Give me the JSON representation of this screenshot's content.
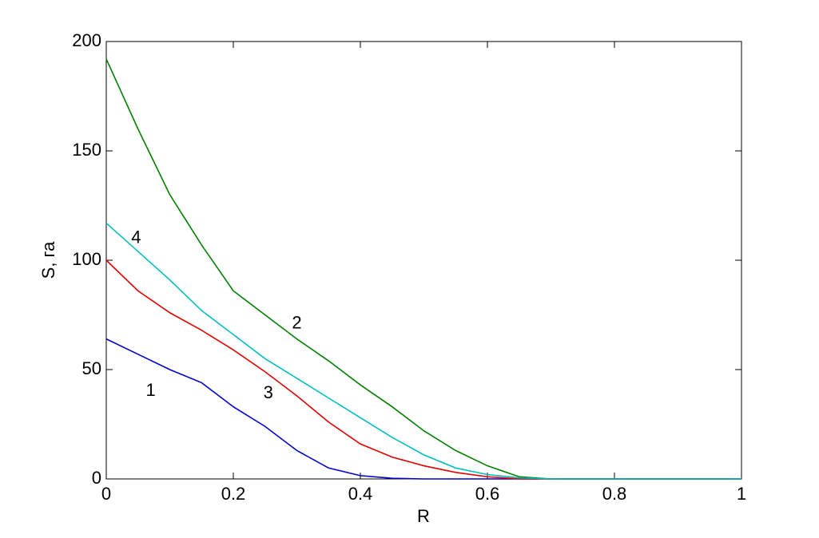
{
  "chart_data": {
    "type": "line",
    "xlabel": "R",
    "ylabel": "S, га",
    "x": [
      0,
      0.05,
      0.1,
      0.15,
      0.2,
      0.25,
      0.3,
      0.35,
      0.4,
      0.45,
      0.5,
      0.55,
      0.6,
      0.65,
      0.7,
      1
    ],
    "series": [
      {
        "color": "#0000cc",
        "values": [
          64,
          57,
          50,
          44,
          33,
          24,
          13,
          5,
          1.5,
          0.3,
          0,
          0,
          0,
          0,
          0,
          0
        ]
      },
      {
        "color": "#007f00",
        "values": [
          192,
          160,
          130,
          107,
          86,
          75,
          64,
          54,
          43,
          33,
          22,
          13,
          6,
          1,
          0,
          0
        ]
      },
      {
        "color": "#e00000",
        "values": [
          100,
          86,
          76,
          68,
          59,
          49,
          38,
          26,
          16,
          10,
          6,
          3,
          1,
          0,
          0,
          0
        ]
      },
      {
        "color": "#00bfbf",
        "values": [
          117,
          104,
          91,
          77,
          66,
          55,
          46,
          37,
          28,
          19,
          11,
          5,
          2,
          0.5,
          0,
          0
        ]
      }
    ],
    "annotations": [
      {
        "text": "1",
        "x": 0.07,
        "y": 40
      },
      {
        "text": "2",
        "x": 0.3,
        "y": 71
      },
      {
        "text": "3",
        "x": 0.255,
        "y": 39
      },
      {
        "text": "4",
        "x": 0.047,
        "y": 110
      }
    ],
    "xlim": [
      0,
      1
    ],
    "xticks": [
      0,
      0.2,
      0.4,
      0.6,
      0.8,
      1
    ],
    "ylim": [
      0,
      200
    ],
    "yticks": [
      0,
      50,
      100,
      150,
      200
    ]
  }
}
